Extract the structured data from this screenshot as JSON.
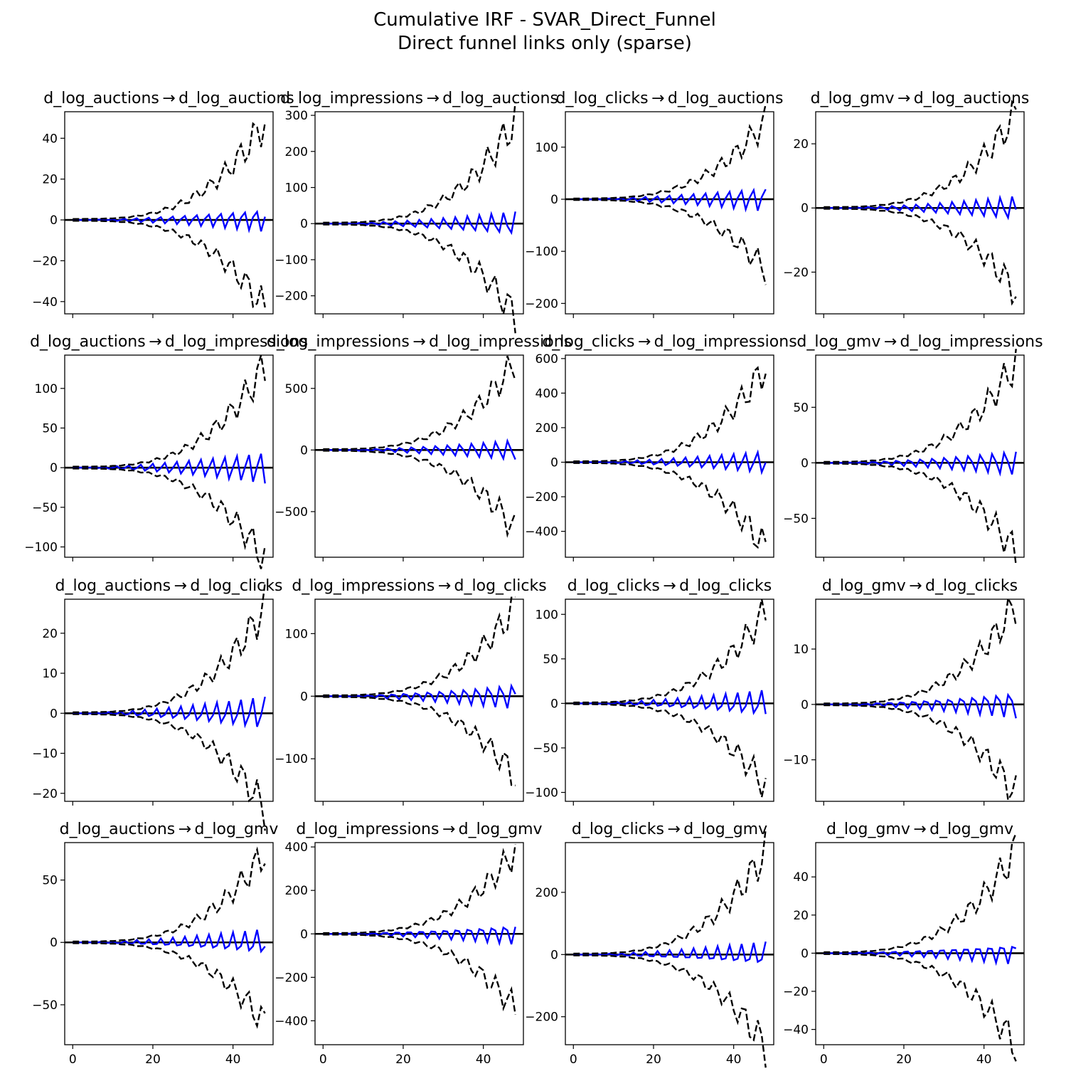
{
  "figure": {
    "title_line1": "Cumulative IRF - SVAR_Direct_Funnel",
    "title_line2": "Direct funnel links only (sparse)"
  },
  "chart_data": [
    {
      "type": "line",
      "title": "d_log_auctions → d_log_auctions",
      "xlim": [
        -2,
        50
      ],
      "ylim": [
        -46,
        53
      ],
      "xticks": [
        0,
        20,
        40
      ],
      "yticks": [
        -40,
        -20,
        0,
        20,
        40
      ],
      "show_xticklabels": false,
      "upper_scale": 48,
      "irf_scale": 6,
      "irf_phase": 0,
      "series": [
        {
          "style": "solid-blue",
          "values": []
        },
        {
          "style": "dashed-black",
          "values": []
        },
        {
          "style": "dashed-black",
          "values": []
        }
      ]
    },
    {
      "type": "line",
      "title": "d_log_impressions → d_log_auctions",
      "xlim": [
        -2,
        50
      ],
      "ylim": [
        -250,
        310
      ],
      "xticks": [
        0,
        20,
        40
      ],
      "yticks": [
        -200,
        -100,
        0,
        100,
        200,
        300
      ],
      "show_xticklabels": false,
      "upper_scale": 285,
      "irf_scale": 35,
      "irf_phase": 1,
      "series": [
        {
          "style": "solid-blue",
          "values": []
        },
        {
          "style": "dashed-black",
          "values": []
        },
        {
          "style": "dashed-black",
          "values": []
        }
      ]
    },
    {
      "type": "line",
      "title": "d_log_clicks → d_log_auctions",
      "xlim": [
        -2,
        50
      ],
      "ylim": [
        -220,
        168
      ],
      "xticks": [
        0,
        20,
        40
      ],
      "yticks": [
        -200,
        -100,
        0,
        100
      ],
      "show_xticklabels": false,
      "upper_scale": 150,
      "irf_scale": 25,
      "irf_phase": 2,
      "series": [
        {
          "style": "solid-blue",
          "values": []
        },
        {
          "style": "dashed-black",
          "values": []
        },
        {
          "style": "dashed-black",
          "values": []
        }
      ]
    },
    {
      "type": "line",
      "title": "d_log_gmv → d_log_auctions",
      "xlim": [
        -2,
        50
      ],
      "ylim": [
        -33,
        30
      ],
      "xticks": [
        0,
        20,
        40
      ],
      "yticks": [
        -20,
        0,
        20
      ],
      "show_xticklabels": false,
      "upper_scale": 29,
      "irf_scale": 4,
      "irf_phase": 3,
      "series": [
        {
          "style": "solid-blue",
          "values": []
        },
        {
          "style": "dashed-black",
          "values": []
        },
        {
          "style": "dashed-black",
          "values": []
        }
      ]
    },
    {
      "type": "line",
      "title": "d_log_auctions → d_log_impressions",
      "xlim": [
        -2,
        50
      ],
      "ylim": [
        -113,
        142
      ],
      "xticks": [
        0,
        20,
        40
      ],
      "yticks": [
        -100,
        -50,
        0,
        50,
        100
      ],
      "show_xticklabels": false,
      "upper_scale": 128,
      "irf_scale": 22,
      "irf_phase": 4,
      "series": [
        {
          "style": "solid-blue",
          "values": []
        },
        {
          "style": "dashed-black",
          "values": []
        },
        {
          "style": "dashed-black",
          "values": []
        }
      ]
    },
    {
      "type": "line",
      "title": "d_log_impressions → d_log_impressions",
      "xlim": [
        -2,
        50
      ],
      "ylim": [
        -870,
        770
      ],
      "xticks": [
        0,
        20,
        40
      ],
      "yticks": [
        -500,
        0,
        500
      ],
      "show_xticklabels": false,
      "upper_scale": 710,
      "irf_scale": 90,
      "irf_phase": 5,
      "series": [
        {
          "style": "solid-blue",
          "values": []
        },
        {
          "style": "dashed-black",
          "values": []
        },
        {
          "style": "dashed-black",
          "values": []
        }
      ]
    },
    {
      "type": "line",
      "title": "d_log_clicks → d_log_impressions",
      "xlim": [
        -2,
        50
      ],
      "ylim": [
        -550,
        620
      ],
      "xticks": [
        0,
        20,
        40
      ],
      "yticks": [
        -400,
        -200,
        0,
        200,
        400,
        600
      ],
      "show_xticklabels": false,
      "upper_scale": 550,
      "irf_scale": 70,
      "irf_phase": 6,
      "series": [
        {
          "style": "solid-blue",
          "values": []
        },
        {
          "style": "dashed-black",
          "values": []
        },
        {
          "style": "dashed-black",
          "values": []
        }
      ]
    },
    {
      "type": "line",
      "title": "d_log_gmv → d_log_impressions",
      "xlim": [
        -2,
        50
      ],
      "ylim": [
        -85,
        97
      ],
      "xticks": [
        0,
        20,
        40
      ],
      "yticks": [
        -50,
        0,
        50
      ],
      "show_xticklabels": false,
      "upper_scale": 90,
      "irf_scale": 12,
      "irf_phase": 7,
      "series": [
        {
          "style": "solid-blue",
          "values": []
        },
        {
          "style": "dashed-black",
          "values": []
        },
        {
          "style": "dashed-black",
          "values": []
        }
      ]
    },
    {
      "type": "line",
      "title": "d_log_auctions → d_log_clicks",
      "xlim": [
        -2,
        50
      ],
      "ylim": [
        -22,
        28.5
      ],
      "xticks": [
        0,
        20,
        40
      ],
      "yticks": [
        -20,
        -10,
        0,
        10,
        20
      ],
      "show_xticklabels": false,
      "upper_scale": 26.5,
      "irf_scale": 4.5,
      "irf_phase": 8,
      "series": [
        {
          "style": "solid-blue",
          "values": []
        },
        {
          "style": "dashed-black",
          "values": []
        },
        {
          "style": "dashed-black",
          "values": []
        }
      ]
    },
    {
      "type": "line",
      "title": "d_log_impressions → d_log_clicks",
      "xlim": [
        -2,
        50
      ],
      "ylim": [
        -168,
        155
      ],
      "xticks": [
        0,
        20,
        40
      ],
      "yticks": [
        -100,
        0,
        100
      ],
      "show_xticklabels": false,
      "upper_scale": 142,
      "irf_scale": 22,
      "irf_phase": 9,
      "series": [
        {
          "style": "solid-blue",
          "values": []
        },
        {
          "style": "dashed-black",
          "values": []
        },
        {
          "style": "dashed-black",
          "values": []
        }
      ]
    },
    {
      "type": "line",
      "title": "d_log_clicks → d_log_clicks",
      "xlim": [
        -2,
        50
      ],
      "ylim": [
        -110,
        117
      ],
      "xticks": [
        0,
        20,
        40
      ],
      "yticks": [
        -100,
        -50,
        0,
        50,
        100
      ],
      "show_xticklabels": false,
      "upper_scale": 103,
      "irf_scale": 16,
      "irf_phase": 10,
      "series": [
        {
          "style": "solid-blue",
          "values": []
        },
        {
          "style": "dashed-black",
          "values": []
        },
        {
          "style": "dashed-black",
          "values": []
        }
      ]
    },
    {
      "type": "line",
      "title": "d_log_gmv → d_log_clicks",
      "xlim": [
        -2,
        50
      ],
      "ylim": [
        -17.5,
        19
      ],
      "xticks": [
        0,
        20,
        40
      ],
      "yticks": [
        -10,
        0,
        10
      ],
      "show_xticklabels": false,
      "upper_scale": 18,
      "irf_scale": 2.6,
      "irf_phase": 11,
      "series": [
        {
          "style": "solid-blue",
          "values": []
        },
        {
          "style": "dashed-black",
          "values": []
        },
        {
          "style": "dashed-black",
          "values": []
        }
      ]
    },
    {
      "type": "line",
      "title": "d_log_auctions → d_log_gmv",
      "xlim": [
        -2,
        50
      ],
      "ylim": [
        -82,
        80
      ],
      "xticks": [
        0,
        20,
        40
      ],
      "yticks": [
        -50,
        0,
        50
      ],
      "show_xticklabels": true,
      "upper_scale": 72,
      "irf_scale": 11,
      "irf_phase": 12,
      "series": [
        {
          "style": "solid-blue",
          "values": []
        },
        {
          "style": "dashed-black",
          "values": []
        },
        {
          "style": "dashed-black",
          "values": []
        }
      ]
    },
    {
      "type": "line",
      "title": "d_log_impressions → d_log_gmv",
      "xlim": [
        -2,
        50
      ],
      "ylim": [
        -510,
        420
      ],
      "xticks": [
        0,
        20,
        40
      ],
      "yticks": [
        -400,
        -200,
        0,
        200,
        400
      ],
      "show_xticklabels": true,
      "upper_scale": 380,
      "irf_scale": 50,
      "irf_phase": 13,
      "series": [
        {
          "style": "solid-blue",
          "values": []
        },
        {
          "style": "dashed-black",
          "values": []
        },
        {
          "style": "dashed-black",
          "values": []
        }
      ]
    },
    {
      "type": "line",
      "title": "d_log_clicks → d_log_gmv",
      "xlim": [
        -2,
        50
      ],
      "ylim": [
        -290,
        360
      ],
      "xticks": [
        0,
        20,
        40
      ],
      "yticks": [
        -200,
        0,
        200
      ],
      "show_xticklabels": true,
      "upper_scale": 330,
      "irf_scale": 42,
      "irf_phase": 14,
      "series": [
        {
          "style": "solid-blue",
          "values": []
        },
        {
          "style": "dashed-black",
          "values": []
        },
        {
          "style": "dashed-black",
          "values": []
        }
      ]
    },
    {
      "type": "line",
      "title": "d_log_gmv → d_log_gmv",
      "xlim": [
        -2,
        50
      ],
      "ylim": [
        -48,
        58
      ],
      "xticks": [
        0,
        20,
        40
      ],
      "yticks": [
        -40,
        -20,
        0,
        20,
        40
      ],
      "show_xticklabels": true,
      "upper_scale": 54,
      "irf_scale": 6,
      "irf_phase": 15,
      "series": [
        {
          "style": "solid-blue",
          "values": []
        },
        {
          "style": "dashed-black",
          "values": []
        },
        {
          "style": "dashed-black",
          "values": []
        }
      ]
    }
  ]
}
